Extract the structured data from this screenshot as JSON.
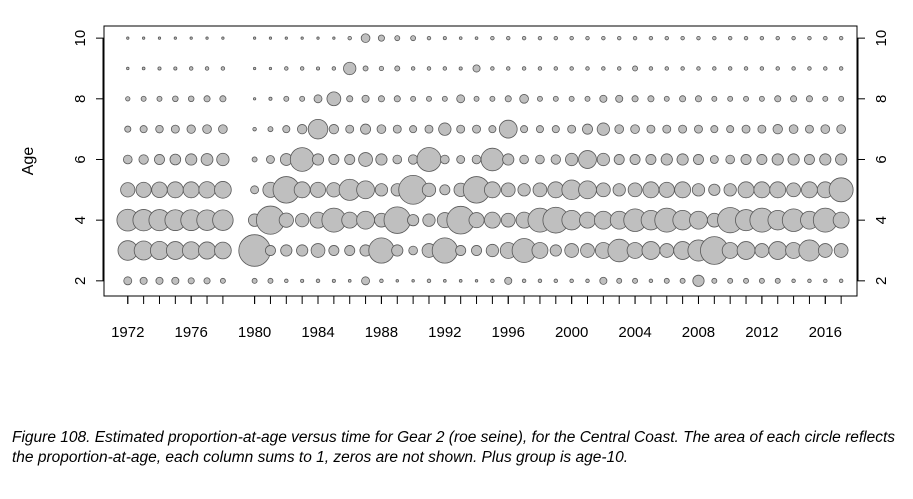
{
  "caption": "Figure 108. Estimated proportion-at-age versus time for Gear 2 (roe seine), for the Central Coast. The area of each circle reflects the proportion-at-age, each column sums to 1, zeros are not shown. Plus group is age-10.",
  "chart_data": {
    "type": "scatter",
    "subtype": "bubble",
    "title": "",
    "xlabel": "",
    "ylabel": "Age",
    "xlim": [
      1970.5,
      2018
    ],
    "ylim": [
      1.5,
      10.4
    ],
    "x_ticks": [
      1972,
      1976,
      1980,
      1984,
      1988,
      1992,
      1996,
      2000,
      2004,
      2008,
      2012,
      2016
    ],
    "y_ticks": [
      2,
      4,
      6,
      8,
      10
    ],
    "y_tick_labels": [
      "2",
      "4",
      "6",
      "8",
      "10"
    ],
    "right_axis": true,
    "grid": false,
    "legend": "none",
    "point_fill": "#bfbfbf",
    "point_stroke": "#595959",
    "years": [
      1972,
      1973,
      1974,
      1975,
      1976,
      1977,
      1978,
      1980,
      1981,
      1982,
      1983,
      1984,
      1985,
      1986,
      1987,
      1988,
      1989,
      1990,
      1991,
      1992,
      1993,
      1994,
      1995,
      1996,
      1997,
      1998,
      1999,
      2000,
      2001,
      2002,
      2003,
      2004,
      2005,
      2006,
      2007,
      2008,
      2009,
      2010,
      2011,
      2012,
      2013,
      2014,
      2015,
      2016,
      2017
    ],
    "ages": [
      2,
      3,
      4,
      5,
      6,
      7,
      8,
      9,
      10
    ],
    "proportion_at_age": [
      [
        0.05,
        0.3,
        0.37,
        0.16,
        0.06,
        0.03,
        0.015,
        0.005,
        0.002
      ],
      [
        0.04,
        0.28,
        0.36,
        0.18,
        0.07,
        0.04,
        0.02,
        0.006,
        0.002
      ],
      [
        0.04,
        0.26,
        0.35,
        0.19,
        0.08,
        0.045,
        0.02,
        0.008,
        0.003
      ],
      [
        0.04,
        0.25,
        0.34,
        0.2,
        0.09,
        0.05,
        0.025,
        0.008,
        0.003
      ],
      [
        0.03,
        0.24,
        0.34,
        0.2,
        0.1,
        0.055,
        0.025,
        0.01,
        0.004
      ],
      [
        0.03,
        0.23,
        0.33,
        0.21,
        0.11,
        0.06,
        0.03,
        0.01,
        0.004
      ],
      [
        0.02,
        0.22,
        0.33,
        0.22,
        0.12,
        0.06,
        0.03,
        0.01,
        0.004
      ],
      [
        0.02,
        0.78,
        0.12,
        0.05,
        0.02,
        0.01,
        0.004,
        0.002,
        0.001
      ],
      [
        0.02,
        0.08,
        0.62,
        0.18,
        0.05,
        0.02,
        0.008,
        0.004,
        0.002
      ],
      [
        0.01,
        0.1,
        0.16,
        0.55,
        0.11,
        0.04,
        0.02,
        0.01,
        0.003
      ],
      [
        0.008,
        0.1,
        0.14,
        0.2,
        0.44,
        0.07,
        0.02,
        0.01,
        0.003
      ],
      [
        0.01,
        0.15,
        0.2,
        0.18,
        0.1,
        0.3,
        0.05,
        0.008,
        0.003
      ],
      [
        0.008,
        0.08,
        0.45,
        0.16,
        0.08,
        0.07,
        0.15,
        0.01,
        0.004
      ],
      [
        0.006,
        0.08,
        0.2,
        0.35,
        0.08,
        0.05,
        0.03,
        0.12,
        0.01
      ],
      [
        0.05,
        0.1,
        0.25,
        0.25,
        0.15,
        0.08,
        0.04,
        0.02,
        0.06
      ],
      [
        0.01,
        0.5,
        0.15,
        0.12,
        0.1,
        0.06,
        0.03,
        0.015,
        0.03
      ],
      [
        0.005,
        0.1,
        0.55,
        0.12,
        0.06,
        0.05,
        0.03,
        0.02,
        0.02
      ],
      [
        0.005,
        0.06,
        0.1,
        0.65,
        0.07,
        0.04,
        0.02,
        0.01,
        0.02
      ],
      [
        0.01,
        0.15,
        0.12,
        0.14,
        0.45,
        0.05,
        0.02,
        0.01,
        0.01
      ],
      [
        0.006,
        0.5,
        0.18,
        0.08,
        0.06,
        0.12,
        0.02,
        0.01,
        0.008
      ],
      [
        0.006,
        0.08,
        0.6,
        0.14,
        0.05,
        0.05,
        0.05,
        0.008,
        0.006
      ],
      [
        0.005,
        0.08,
        0.18,
        0.55,
        0.06,
        0.05,
        0.02,
        0.04,
        0.006
      ],
      [
        0.01,
        0.12,
        0.2,
        0.2,
        0.4,
        0.04,
        0.02,
        0.01,
        0.01
      ],
      [
        0.04,
        0.2,
        0.15,
        0.15,
        0.1,
        0.25,
        0.03,
        0.01,
        0.01
      ],
      [
        0.01,
        0.45,
        0.2,
        0.12,
        0.06,
        0.04,
        0.06,
        0.01,
        0.01
      ],
      [
        0.01,
        0.2,
        0.45,
        0.15,
        0.06,
        0.04,
        0.02,
        0.01,
        0.01
      ],
      [
        0.01,
        0.1,
        0.52,
        0.2,
        0.07,
        0.04,
        0.02,
        0.01,
        0.01
      ],
      [
        0.01,
        0.15,
        0.3,
        0.3,
        0.12,
        0.05,
        0.02,
        0.01,
        0.01
      ],
      [
        0.01,
        0.15,
        0.2,
        0.25,
        0.25,
        0.08,
        0.02,
        0.01,
        0.01
      ],
      [
        0.04,
        0.2,
        0.25,
        0.15,
        0.12,
        0.12,
        0.04,
        0.01,
        0.01
      ],
      [
        0.02,
        0.4,
        0.25,
        0.12,
        0.08,
        0.06,
        0.04,
        0.01,
        0.01
      ],
      [
        0.02,
        0.2,
        0.4,
        0.15,
        0.08,
        0.06,
        0.03,
        0.02,
        0.01
      ],
      [
        0.01,
        0.25,
        0.3,
        0.2,
        0.08,
        0.05,
        0.03,
        0.01,
        0.01
      ],
      [
        0.02,
        0.15,
        0.45,
        0.18,
        0.1,
        0.05,
        0.02,
        0.01,
        0.01
      ],
      [
        0.02,
        0.25,
        0.3,
        0.2,
        0.1,
        0.05,
        0.03,
        0.01,
        0.01
      ],
      [
        0.1,
        0.35,
        0.25,
        0.12,
        0.08,
        0.05,
        0.03,
        0.01,
        0.01
      ],
      [
        0.02,
        0.6,
        0.15,
        0.1,
        0.05,
        0.04,
        0.02,
        0.01,
        0.01
      ],
      [
        0.02,
        0.2,
        0.5,
        0.12,
        0.06,
        0.04,
        0.02,
        0.01,
        0.01
      ],
      [
        0.02,
        0.25,
        0.35,
        0.2,
        0.08,
        0.05,
        0.02,
        0.01,
        0.01
      ],
      [
        0.02,
        0.15,
        0.45,
        0.2,
        0.08,
        0.05,
        0.02,
        0.01,
        0.01
      ],
      [
        0.02,
        0.25,
        0.3,
        0.2,
        0.1,
        0.07,
        0.03,
        0.01,
        0.01
      ],
      [
        0.01,
        0.2,
        0.4,
        0.15,
        0.1,
        0.06,
        0.03,
        0.01,
        0.01
      ],
      [
        0.01,
        0.35,
        0.25,
        0.2,
        0.08,
        0.05,
        0.03,
        0.01,
        0.01
      ],
      [
        0.01,
        0.15,
        0.45,
        0.2,
        0.1,
        0.06,
        0.02,
        0.01,
        0.01
      ],
      [
        0.01,
        0.15,
        0.2,
        0.45,
        0.1,
        0.06,
        0.02,
        0.01,
        0.01
      ]
    ]
  }
}
